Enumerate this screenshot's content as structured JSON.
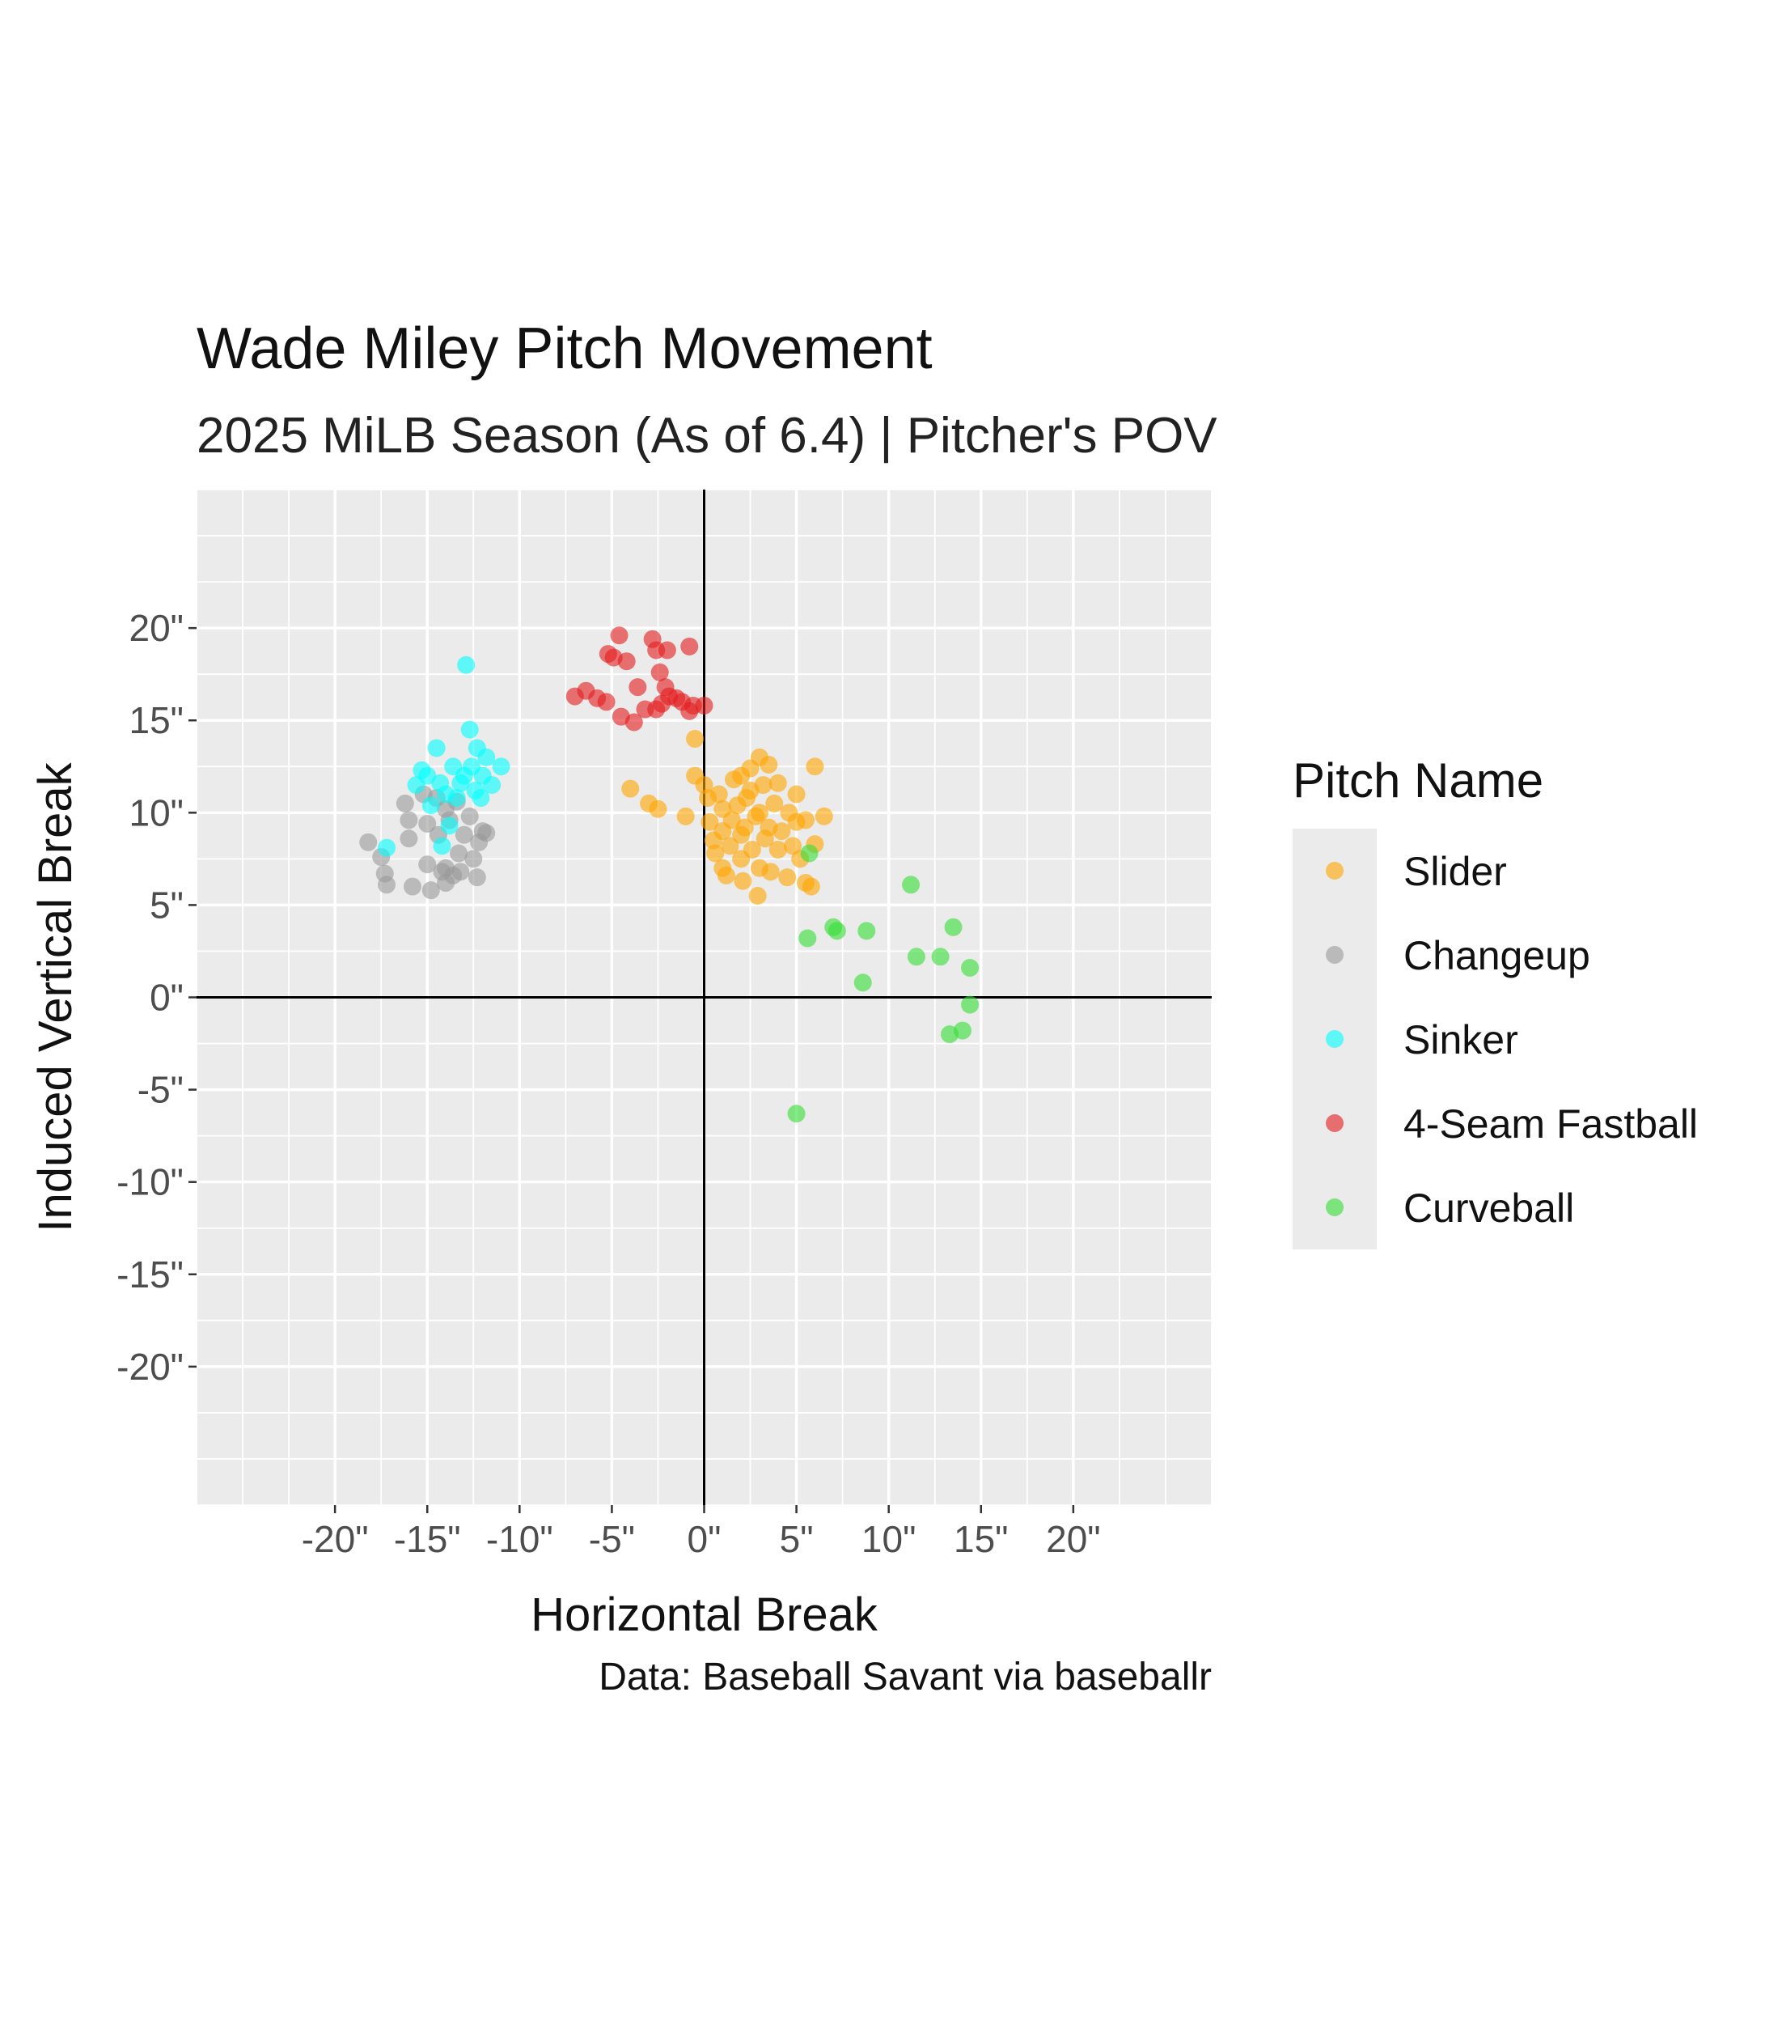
{
  "chart_data": {
    "type": "scatter",
    "title": "Wade Miley Pitch Movement",
    "subtitle": "2025 MiLB Season (As of 6.4) | Pitcher's POV",
    "caption": "Data: Baseball Savant via baseballr",
    "xlabel": "Horizontal Break",
    "ylabel": "Induced Vertical Break",
    "xlim": [
      -27.5,
      27.5
    ],
    "ylim": [
      -27.5,
      27.5
    ],
    "xticks": [
      -20,
      -15,
      -10,
      -5,
      0,
      5,
      10,
      15,
      20
    ],
    "yticks": [
      -20,
      -15,
      -10,
      -5,
      0,
      5,
      10,
      15,
      20
    ],
    "tick_suffix": "\"",
    "grid": true,
    "reference_lines": {
      "x": 0,
      "y": 0
    },
    "legend": {
      "title": "Pitch Name",
      "position": "right"
    },
    "series": [
      {
        "name": "Slider",
        "color": "#FFA500",
        "points": [
          [
            -4,
            11.3
          ],
          [
            -3,
            10.5
          ],
          [
            -2.5,
            10.2
          ],
          [
            -1,
            9.8
          ],
          [
            -0.5,
            14
          ],
          [
            -0.5,
            12
          ],
          [
            0,
            11.5
          ],
          [
            0.2,
            10.8
          ],
          [
            0.3,
            9.5
          ],
          [
            0.5,
            8.5
          ],
          [
            0.6,
            7.8
          ],
          [
            0.8,
            11
          ],
          [
            1,
            10.2
          ],
          [
            1,
            9
          ],
          [
            1,
            7
          ],
          [
            1.2,
            6.6
          ],
          [
            1.4,
            8.2
          ],
          [
            1.5,
            9.6
          ],
          [
            1.6,
            11.8
          ],
          [
            1.8,
            10.4
          ],
          [
            2,
            12
          ],
          [
            2,
            8.8
          ],
          [
            2,
            7.5
          ],
          [
            2.1,
            6.3
          ],
          [
            2.2,
            9.2
          ],
          [
            2.3,
            10.8
          ],
          [
            2.5,
            12.4
          ],
          [
            2.5,
            11.2
          ],
          [
            2.6,
            8
          ],
          [
            2.8,
            9.8
          ],
          [
            2.9,
            5.5
          ],
          [
            3,
            13
          ],
          [
            3,
            10
          ],
          [
            3,
            7
          ],
          [
            3.2,
            11.5
          ],
          [
            3.3,
            8.6
          ],
          [
            3.5,
            12.6
          ],
          [
            3.5,
            9.2
          ],
          [
            3.6,
            6.8
          ],
          [
            3.8,
            10.5
          ],
          [
            4,
            8
          ],
          [
            4,
            11.6
          ],
          [
            4.2,
            9
          ],
          [
            4.5,
            6.5
          ],
          [
            4.6,
            10
          ],
          [
            4.8,
            8.2
          ],
          [
            5,
            11
          ],
          [
            5,
            9.5
          ],
          [
            5.2,
            7.5
          ],
          [
            5.5,
            6.2
          ],
          [
            5.5,
            9.6
          ],
          [
            6,
            12.5
          ],
          [
            6,
            8.3
          ],
          [
            6.5,
            9.8
          ],
          [
            5.8,
            6
          ]
        ]
      },
      {
        "name": "Changeup",
        "color": "#999999",
        "points": [
          [
            -18.2,
            8.4
          ],
          [
            -17.5,
            7.6
          ],
          [
            -17.3,
            6.7
          ],
          [
            -17.2,
            6.1
          ],
          [
            -16.2,
            10.5
          ],
          [
            -16,
            9.6
          ],
          [
            -16,
            8.6
          ],
          [
            -15.8,
            6
          ],
          [
            -15.2,
            11
          ],
          [
            -15,
            9.4
          ],
          [
            -15,
            7.2
          ],
          [
            -14.5,
            10.8
          ],
          [
            -14.4,
            8.8
          ],
          [
            -14.2,
            6.8
          ],
          [
            -14,
            10.2
          ],
          [
            -14,
            7
          ],
          [
            -14,
            6.2
          ],
          [
            -13.8,
            9.6
          ],
          [
            -13.6,
            6.6
          ],
          [
            -13.4,
            10.6
          ],
          [
            -13.2,
            6.8
          ],
          [
            -13,
            8.8
          ],
          [
            -12.7,
            9.8
          ],
          [
            -12.5,
            7.5
          ],
          [
            -12.3,
            6.5
          ],
          [
            -12.2,
            8.4
          ],
          [
            -12,
            9
          ],
          [
            -11.8,
            8.9
          ],
          [
            -14.8,
            5.8
          ],
          [
            -13.3,
            7.8
          ]
        ]
      },
      {
        "name": "Sinker",
        "color": "#00FFFF",
        "points": [
          [
            -17.2,
            8.1
          ],
          [
            -15.6,
            11.5
          ],
          [
            -15.3,
            12.3
          ],
          [
            -15,
            12
          ],
          [
            -14.8,
            10.4
          ],
          [
            -14.5,
            13.5
          ],
          [
            -14.3,
            11.6
          ],
          [
            -14,
            11
          ],
          [
            -13.8,
            9.3
          ],
          [
            -13.6,
            12.5
          ],
          [
            -13.4,
            10.8
          ],
          [
            -13.2,
            11.6
          ],
          [
            -13,
            12
          ],
          [
            -12.9,
            18
          ],
          [
            -12.7,
            14.5
          ],
          [
            -12.6,
            12.5
          ],
          [
            -12.4,
            11.2
          ],
          [
            -12.3,
            13.5
          ],
          [
            -12.1,
            10.8
          ],
          [
            -12,
            12
          ],
          [
            -11.8,
            13
          ],
          [
            -11.5,
            11.5
          ],
          [
            -11,
            12.5
          ],
          [
            -14.2,
            8.2
          ]
        ]
      },
      {
        "name": "4-Seam Fastball",
        "color": "#E41A1C",
        "points": [
          [
            -7,
            16.3
          ],
          [
            -6.4,
            16.6
          ],
          [
            -5.8,
            16.2
          ],
          [
            -5.3,
            16
          ],
          [
            -5.2,
            18.6
          ],
          [
            -4.9,
            18.4
          ],
          [
            -4.6,
            19.6
          ],
          [
            -4.5,
            15.2
          ],
          [
            -4.2,
            18.2
          ],
          [
            -3.8,
            14.9
          ],
          [
            -3.6,
            16.8
          ],
          [
            -3.2,
            15.6
          ],
          [
            -2.8,
            19.4
          ],
          [
            -2.6,
            18.8
          ],
          [
            -2.4,
            17.6
          ],
          [
            -2.1,
            16.8
          ],
          [
            -2.3,
            15.9
          ],
          [
            -1.9,
            16.3
          ],
          [
            -1.5,
            16.2
          ],
          [
            -1.2,
            16
          ],
          [
            -0.8,
            15.5
          ],
          [
            -0.6,
            15.8
          ],
          [
            -0.8,
            19
          ],
          [
            0,
            15.8
          ],
          [
            -2.6,
            15.6
          ],
          [
            -2,
            18.8
          ]
        ]
      },
      {
        "name": "Curveball",
        "color": "#33DD33",
        "points": [
          [
            5.7,
            7.8
          ],
          [
            7,
            3.8
          ],
          [
            7.2,
            3.6
          ],
          [
            8.6,
            0.8
          ],
          [
            8.8,
            3.6
          ],
          [
            11.2,
            6.1
          ],
          [
            11.5,
            2.2
          ],
          [
            12.8,
            2.2
          ],
          [
            13.5,
            3.8
          ],
          [
            13.3,
            -2
          ],
          [
            14,
            -1.8
          ],
          [
            14.4,
            1.6
          ],
          [
            14.4,
            -0.4
          ],
          [
            5.6,
            3.2
          ],
          [
            5,
            -6.3
          ]
        ]
      }
    ]
  }
}
